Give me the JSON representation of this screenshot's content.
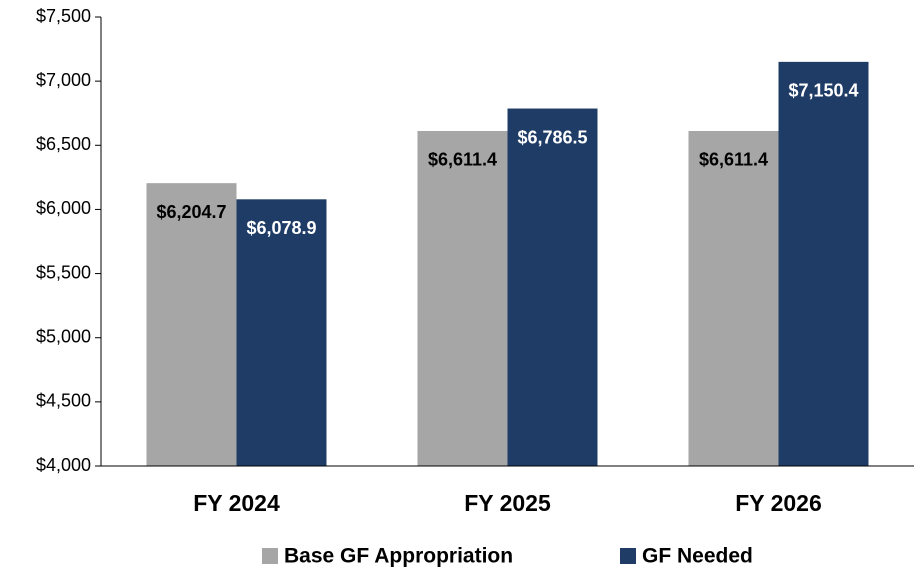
{
  "chart_data": {
    "type": "bar",
    "categories": [
      "FY 2024",
      "FY 2025",
      "FY 2026"
    ],
    "series": [
      {
        "name": "Base GF Appropriation",
        "color": "#a6a6a6",
        "values": [
          6204.7,
          6611.4,
          6611.4
        ],
        "value_labels": [
          "$6,204.7",
          "$6,611.4",
          "$6,611.4"
        ],
        "label_color": "#000000"
      },
      {
        "name": "GF Needed",
        "color": "#1f3c66",
        "values": [
          6078.9,
          6786.5,
          7150.4
        ],
        "value_labels": [
          "$6,078.9",
          "$6,786.5",
          "$7,150.4"
        ],
        "label_color": "#ffffff"
      }
    ],
    "ylim": [
      4000,
      7500
    ],
    "yticks": [
      {
        "value": 4000,
        "label": "$4,000"
      },
      {
        "value": 4500,
        "label": "$4,500"
      },
      {
        "value": 5000,
        "label": "$5,000"
      },
      {
        "value": 5500,
        "label": "$5,500"
      },
      {
        "value": 6000,
        "label": "$6,000"
      },
      {
        "value": 6500,
        "label": "$6,500"
      },
      {
        "value": 7000,
        "label": "$7,000"
      },
      {
        "value": 7500,
        "label": "$7,500"
      }
    ],
    "grid": false,
    "legend": "bottom"
  }
}
